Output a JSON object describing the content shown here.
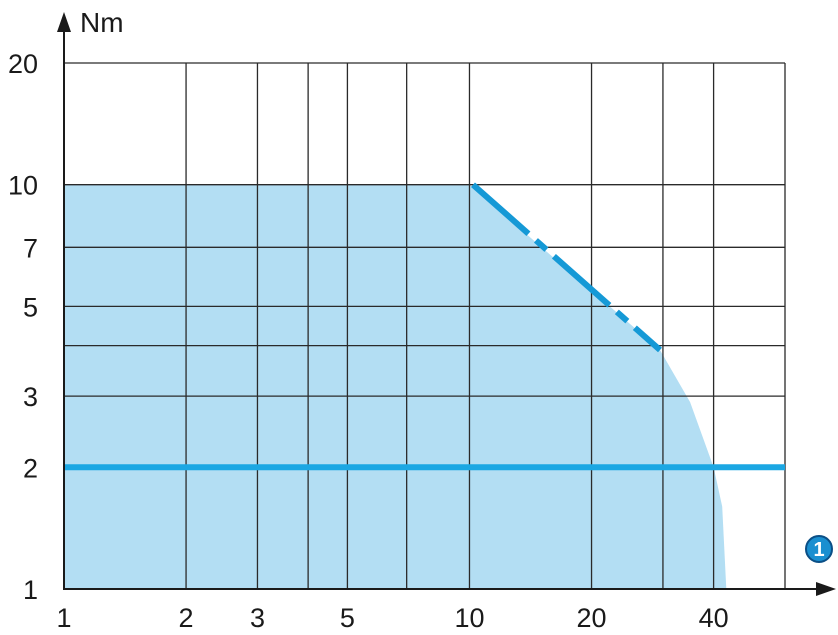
{
  "chart_data": {
    "type": "area",
    "x_scale": "log",
    "y_scale": "log",
    "xlim": [
      1,
      60
    ],
    "ylim": [
      1,
      20
    ],
    "ylabel": "Nm",
    "x_axis_marker": "1",
    "grid": true,
    "x_gridlines": [
      1,
      2,
      3,
      4,
      5,
      7,
      10,
      20,
      30,
      40,
      60
    ],
    "y_gridlines": [
      1,
      2,
      3,
      4,
      5,
      7,
      10,
      20
    ],
    "x_ticks": [
      {
        "value": 1,
        "label": "1"
      },
      {
        "value": 2,
        "label": "2"
      },
      {
        "value": 3,
        "label": "3"
      },
      {
        "value": 5,
        "label": "5"
      },
      {
        "value": 10,
        "label": "10"
      },
      {
        "value": 20,
        "label": "20"
      },
      {
        "value": 40,
        "label": "40"
      }
    ],
    "y_ticks": [
      {
        "value": 1,
        "label": "1"
      },
      {
        "value": 2,
        "label": "2"
      },
      {
        "value": 3,
        "label": "3"
      },
      {
        "value": 5,
        "label": "5"
      },
      {
        "value": 7,
        "label": "7"
      },
      {
        "value": 10,
        "label": "10"
      },
      {
        "value": 20,
        "label": "20"
      }
    ],
    "series": [
      {
        "kind": "area",
        "color": "#b3def3",
        "points": [
          [
            1,
            10
          ],
          [
            10,
            10
          ],
          [
            29.5,
            3.9
          ],
          [
            35,
            2.9
          ],
          [
            40,
            2.0
          ],
          [
            42,
            1.6
          ],
          [
            43,
            1
          ]
        ]
      },
      {
        "kind": "dashed-line",
        "color": "#1599d6",
        "points": [
          [
            10.2,
            10
          ],
          [
            29.5,
            3.9
          ]
        ]
      },
      {
        "kind": "line",
        "color": "#1ba7e3",
        "points": [
          [
            1,
            2
          ],
          [
            60,
            2
          ]
        ]
      }
    ]
  }
}
